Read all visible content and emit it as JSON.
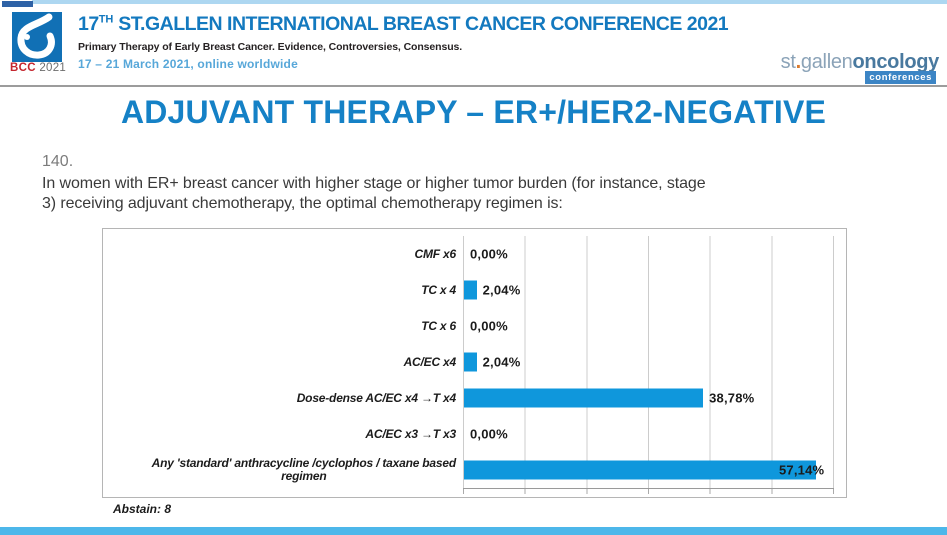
{
  "header": {
    "logo": {
      "bcc": "BCC",
      "year": "2021"
    },
    "title_num": "17",
    "title_sup": "TH",
    "title_rest": " ST.GALLEN INTERNATIONAL BREAST CANCER CONFERENCE 2021",
    "subtitle": "Primary Therapy of Early Breast Cancer. Evidence, Controversies, Consensus.",
    "dates": "17 – 21 March 2021, online worldwide",
    "brand": {
      "st": "st",
      "dot": ".",
      "gallen": "gallen",
      "oncology": "oncology",
      "badge": "conferences"
    }
  },
  "slide": {
    "title": "ADJUVANT THERAPY – ER+/HER2-NEGATIVE",
    "question_number": "140.",
    "question_line1": "In women with ER+ breast cancer with higher stage or higher  tumor burden (for instance, stage",
    "question_line2": "3) receiving adjuvant chemotherapy, the optimal chemotherapy regimen is:",
    "abstain": "Abstain: 8"
  },
  "colors": {
    "brand_blue": "#1581c6",
    "header_title_blue": "#1379bf",
    "dates_blue": "#57a7d9",
    "bar_blue": "#0f97dc",
    "bcc_red": "#c4262e",
    "bottom_bar_blue": "#4db7ea",
    "badge_blue": "#3c85c5"
  },
  "chart_data": {
    "type": "bar",
    "orientation": "horizontal",
    "title": "",
    "xlabel": "",
    "ylabel": "",
    "xlim": [
      0,
      60
    ],
    "gridline_step": 10,
    "grid": true,
    "legend": false,
    "bar_color": "#0f97dc",
    "abstain_count": 8,
    "categories": [
      "CMF x6",
      "TC x 4",
      "TC x 6",
      "AC/EC x4",
      "Dose-dense AC/EC x4 →T x4",
      "AC/EC x3 →T x3",
      "Any 'standard' anthracycline /cyclophos / taxane based regimen"
    ],
    "values": [
      0.0,
      2.04,
      0.0,
      2.04,
      38.78,
      0.0,
      57.14
    ],
    "items": [
      {
        "label": "CMF x6",
        "value": 0.0,
        "display": "0,00%"
      },
      {
        "label": "TC x 4",
        "value": 2.04,
        "display": "2,04%"
      },
      {
        "label": "TC x 6",
        "value": 0.0,
        "display": "0,00%"
      },
      {
        "label": "AC/EC x4",
        "value": 2.04,
        "display": "2,04%"
      },
      {
        "label": "Dose-dense AC/EC x4 →T x4",
        "value": 38.78,
        "display": "38,78%"
      },
      {
        "label": "AC/EC x3 →T x3",
        "value": 0.0,
        "display": "0,00%"
      },
      {
        "label": [
          "Any 'standard' anthracycline /cyclophos / taxane based",
          "regimen"
        ],
        "value": 57.14,
        "display": "57,14%"
      }
    ]
  }
}
